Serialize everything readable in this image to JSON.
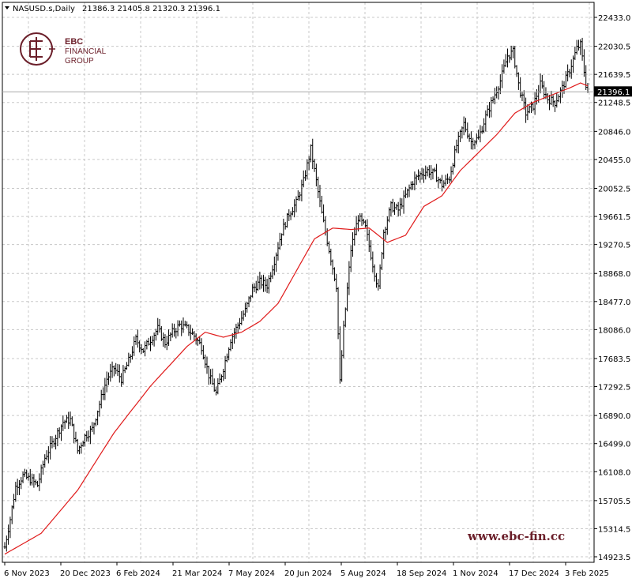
{
  "header": {
    "symbol": "NASUSD.s,Daily",
    "ohlc": "21386.3 21405.8 21320.3 21396.1"
  },
  "logo": {
    "line1": "EBC",
    "line2": "FINANCIAL",
    "line3": "GROUP"
  },
  "watermark": "www.ebc-fin.cc",
  "price_tag": "21396.1",
  "colors": {
    "candles": "#000000",
    "moving_average": "#e01b1b",
    "grid": "#c8c8c8",
    "logo": "#6b1f2a",
    "price_line": "#a8a8a8"
  },
  "chart_data": {
    "type": "candlestick",
    "ylim": [
      14923.5,
      22433.0
    ],
    "y_ticks": [
      "22433.0",
      "22030.5",
      "21639.5",
      "21248.5",
      "20846.0",
      "20455.0",
      "20052.5",
      "19661.5",
      "19270.5",
      "18868.0",
      "18477.0",
      "18086.0",
      "17683.5",
      "17292.5",
      "16890.0",
      "16499.0",
      "16108.0",
      "15705.5",
      "15314.5",
      "14923.5"
    ],
    "x_ticks": [
      "6 Nov 2023",
      "20 Dec 2023",
      "6 Feb 2024",
      "21 Mar 2024",
      "7 May 2024",
      "20 Jun 2024",
      "5 Aug 2024",
      "18 Sep 2024",
      "1 Nov 2024",
      "17 Dec 2024",
      "3 Feb 2025"
    ],
    "last_close": 21396.1,
    "price_path": [
      [
        0,
        15060
      ],
      [
        3,
        15450
      ],
      [
        6,
        15900
      ],
      [
        10,
        16050
      ],
      [
        14,
        16000
      ],
      [
        18,
        15920
      ],
      [
        22,
        16300
      ],
      [
        27,
        16550
      ],
      [
        32,
        16800
      ],
      [
        36,
        16830
      ],
      [
        40,
        16400
      ],
      [
        44,
        16600
      ],
      [
        48,
        16700
      ],
      [
        52,
        17050
      ],
      [
        56,
        17400
      ],
      [
        60,
        17550
      ],
      [
        64,
        17400
      ],
      [
        68,
        17650
      ],
      [
        72,
        17950
      ],
      [
        76,
        17800
      ],
      [
        80,
        17950
      ],
      [
        84,
        18100
      ],
      [
        88,
        17900
      ],
      [
        92,
        18050
      ],
      [
        96,
        18150
      ],
      [
        100,
        18100
      ],
      [
        104,
        18000
      ],
      [
        108,
        17850
      ],
      [
        112,
        17450
      ],
      [
        116,
        17200
      ],
      [
        120,
        17550
      ],
      [
        124,
        17950
      ],
      [
        128,
        18150
      ],
      [
        132,
        18350
      ],
      [
        136,
        18650
      ],
      [
        140,
        18750
      ],
      [
        144,
        18700
      ],
      [
        148,
        19050
      ],
      [
        152,
        19450
      ],
      [
        156,
        19700
      ],
      [
        160,
        19850
      ],
      [
        164,
        20150
      ],
      [
        168,
        20600
      ],
      [
        170,
        20300
      ],
      [
        174,
        19700
      ],
      [
        178,
        19200
      ],
      [
        182,
        18700
      ],
      [
        184,
        17350
      ],
      [
        186,
        18100
      ],
      [
        190,
        19200
      ],
      [
        194,
        19650
      ],
      [
        198,
        19500
      ],
      [
        202,
        19000
      ],
      [
        205,
        18650
      ],
      [
        208,
        19450
      ],
      [
        212,
        19800
      ],
      [
        216,
        19750
      ],
      [
        220,
        19950
      ],
      [
        224,
        20150
      ],
      [
        228,
        20250
      ],
      [
        232,
        20300
      ],
      [
        236,
        20250
      ],
      [
        240,
        20100
      ],
      [
        244,
        20200
      ],
      [
        248,
        20650
      ],
      [
        252,
        20950
      ],
      [
        256,
        20700
      ],
      [
        260,
        20750
      ],
      [
        264,
        21050
      ],
      [
        268,
        21300
      ],
      [
        272,
        21550
      ],
      [
        276,
        21900
      ],
      [
        279,
        21950
      ],
      [
        282,
        21500
      ],
      [
        286,
        21100
      ],
      [
        290,
        21200
      ],
      [
        294,
        21500
      ],
      [
        298,
        21300
      ],
      [
        302,
        21250
      ],
      [
        306,
        21450
      ],
      [
        310,
        21700
      ],
      [
        314,
        22000
      ],
      [
        316,
        22050
      ],
      [
        319,
        21500
      ],
      [
        320,
        21396.1
      ]
    ],
    "ma_path": [
      [
        0,
        14960
      ],
      [
        20,
        15250
      ],
      [
        40,
        15850
      ],
      [
        60,
        16650
      ],
      [
        80,
        17300
      ],
      [
        100,
        17850
      ],
      [
        110,
        18050
      ],
      [
        120,
        17980
      ],
      [
        130,
        18050
      ],
      [
        140,
        18200
      ],
      [
        150,
        18450
      ],
      [
        160,
        18900
      ],
      [
        170,
        19350
      ],
      [
        180,
        19500
      ],
      [
        190,
        19480
      ],
      [
        200,
        19500
      ],
      [
        210,
        19300
      ],
      [
        220,
        19400
      ],
      [
        230,
        19800
      ],
      [
        240,
        19950
      ],
      [
        250,
        20300
      ],
      [
        260,
        20550
      ],
      [
        270,
        20800
      ],
      [
        280,
        21100
      ],
      [
        290,
        21250
      ],
      [
        300,
        21350
      ],
      [
        310,
        21450
      ],
      [
        316,
        21520
      ],
      [
        320,
        21480
      ]
    ]
  }
}
